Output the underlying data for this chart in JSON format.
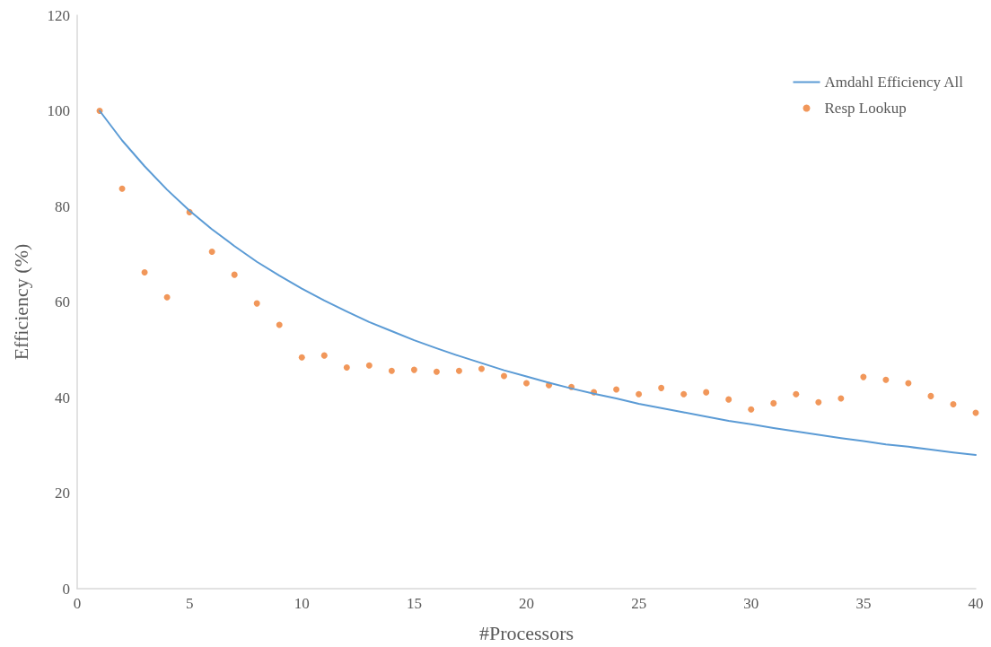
{
  "chart_data": {
    "type": "line",
    "xlabel": "#Processors",
    "ylabel": "Efficiency (%)",
    "x": [
      1,
      2,
      3,
      4,
      5,
      6,
      7,
      8,
      9,
      10,
      11,
      12,
      13,
      14,
      15,
      16,
      17,
      18,
      19,
      20,
      21,
      22,
      23,
      24,
      25,
      26,
      27,
      28,
      29,
      30,
      31,
      32,
      33,
      34,
      35,
      36,
      37,
      38,
      39,
      40
    ],
    "series": [
      {
        "name": "Amdahl Efficiency All",
        "color": "#5b9bd5",
        "marker": "none",
        "line_style": "solid",
        "values": [
          100,
          93.8,
          88.4,
          83.5,
          79.1,
          75.2,
          71.7,
          68.4,
          65.5,
          62.8,
          60.3,
          58.0,
          55.8,
          53.9,
          52.0,
          50.3,
          48.7,
          47.2,
          45.7,
          44.4,
          43.1,
          41.9,
          40.8,
          39.8,
          38.7,
          37.8,
          36.9,
          36.0,
          35.1,
          34.4,
          33.6,
          32.9,
          32.2,
          31.5,
          30.9,
          30.2,
          29.7,
          29.1,
          28.5,
          28.0
        ]
      },
      {
        "name": "Resp Lookup",
        "type": "scatter",
        "color": "#ed7d31",
        "marker": "circle",
        "values": [
          100,
          83.7,
          66.2,
          61.0,
          78.8,
          70.5,
          65.7,
          59.7,
          55.2,
          48.4,
          48.8,
          46.3,
          46.7,
          45.6,
          45.8,
          45.4,
          45.6,
          46.0,
          44.5,
          43.0,
          42.6,
          42.2,
          41.1,
          41.7,
          40.7,
          42.0,
          40.7,
          41.1,
          39.6,
          37.5,
          38.8,
          40.7,
          39.0,
          39.8,
          44.3,
          43.7,
          43.0,
          40.3,
          38.6,
          36.8
        ]
      }
    ],
    "xlim": [
      0,
      40
    ],
    "xticks": [
      0,
      5,
      10,
      15,
      20,
      25,
      30,
      35,
      40
    ],
    "ylim": [
      0,
      120
    ],
    "yticks": [
      0,
      20,
      40,
      60,
      80,
      100,
      120
    ],
    "grid": false,
    "legend": "top right"
  }
}
